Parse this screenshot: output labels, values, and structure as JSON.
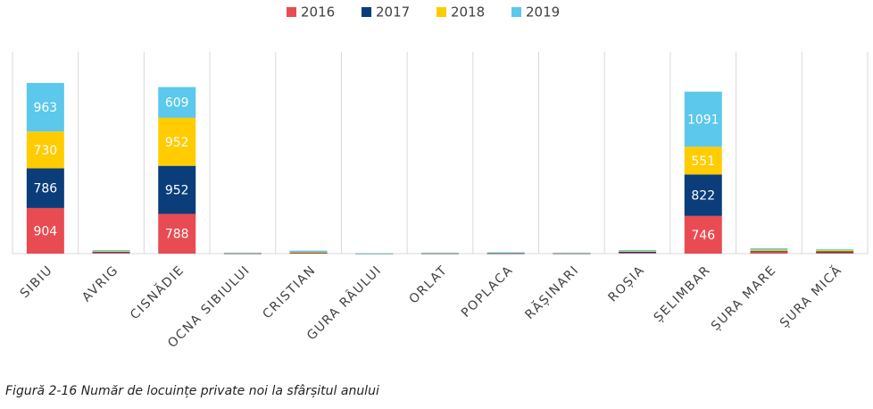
{
  "chart_data": {
    "type": "stacked_bar",
    "categories": [
      "SIBIU",
      "AVRIG",
      "CISNĂDIE",
      "OCNA SIBIULUI",
      "CRISTIAN",
      "GURA RÂULUI",
      "ORLAT",
      "POPLACA",
      "RĂȘINARI",
      "ROȘIA",
      "ȘELIMBAR",
      "ȘURA MARE",
      "ȘURA MICĂ"
    ],
    "series": [
      {
        "name": "2016",
        "color": "#e84c52",
        "values": [
          904,
          20,
          788,
          5,
          15,
          2,
          5,
          5,
          5,
          15,
          746,
          30,
          20
        ]
      },
      {
        "name": "2017",
        "color": "#0a3d7a",
        "values": [
          786,
          15,
          952,
          5,
          10,
          2,
          5,
          5,
          5,
          25,
          822,
          20,
          25
        ]
      },
      {
        "name": "2018",
        "color": "#ffcc00",
        "values": [
          730,
          15,
          952,
          5,
          10,
          2,
          5,
          10,
          5,
          10,
          551,
          30,
          30
        ]
      },
      {
        "name": "2019",
        "color": "#5bc8ec",
        "values": [
          963,
          20,
          609,
          5,
          25,
          2,
          5,
          5,
          5,
          20,
          1091,
          25,
          10
        ]
      }
    ],
    "ylim": [
      0,
      4000
    ],
    "legend": "top",
    "grid": true
  },
  "caption": "Figură 2-16 Număr de locuințe private noi la sfârșitul anului"
}
